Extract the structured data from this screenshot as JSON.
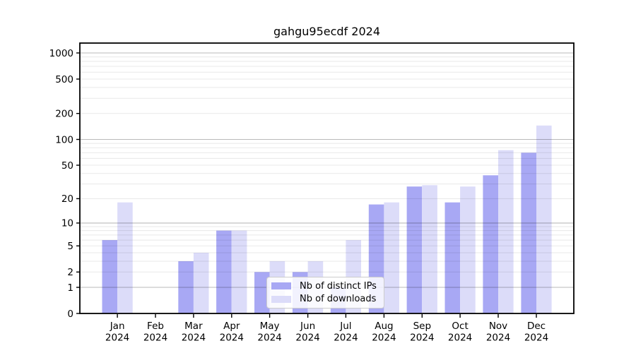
{
  "chart_data": {
    "type": "bar",
    "title": "gahgu95ecdf 2024",
    "categories": [
      "Jan",
      "Feb",
      "Mar",
      "Apr",
      "May",
      "Jun",
      "Jul",
      "Aug",
      "Sep",
      "Oct",
      "Nov",
      "Dec"
    ],
    "category_year": "2024",
    "series": [
      {
        "name": "Nb of distinct IPs",
        "color": "#a8a8f4",
        "values": [
          6,
          0,
          3,
          8,
          2,
          2,
          1,
          17,
          28,
          18,
          38,
          70
        ]
      },
      {
        "name": "Nb of downloads",
        "color": "#dcdcf9",
        "values": [
          18,
          0,
          4,
          8,
          3,
          3,
          6,
          18,
          29,
          28,
          75,
          145
        ]
      }
    ],
    "yticks": [
      0,
      1,
      2,
      5,
      10,
      20,
      50,
      100,
      200,
      500,
      1000
    ],
    "ylim": [
      0,
      1200
    ],
    "yscale": "log10(1+y)",
    "grid": "horizontal",
    "legend_position": "inside-bottom-center"
  }
}
